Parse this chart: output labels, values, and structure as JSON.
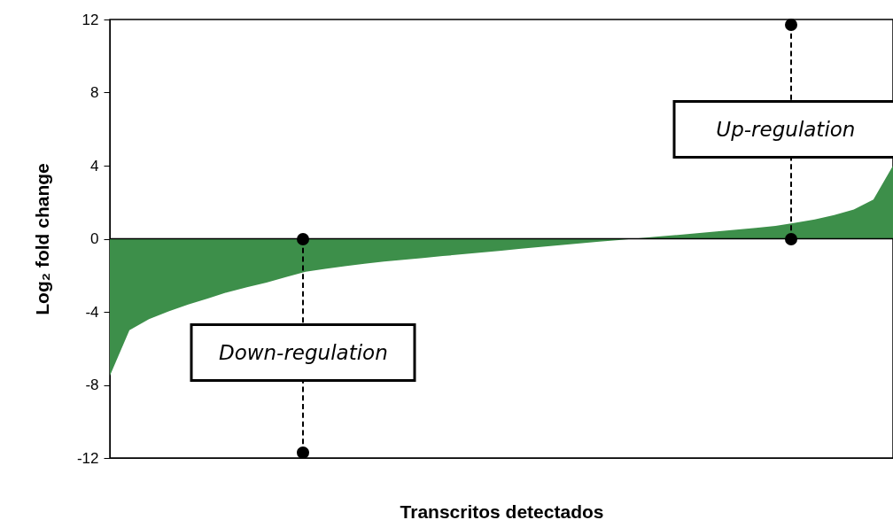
{
  "chart_data": {
    "type": "area",
    "xlabel": "Transcritos detectados",
    "ylabel": "Log₂ fold change",
    "categories": [
      null,
      null,
      null,
      null,
      null,
      null,
      null,
      null,
      null,
      null,
      null,
      null,
      null,
      null,
      null,
      null,
      null,
      null,
      null,
      null,
      null,
      null,
      null,
      null,
      null,
      null,
      null,
      null,
      null,
      null,
      null,
      null,
      null,
      null,
      null,
      null,
      null,
      null,
      null,
      null,
      null
    ],
    "ylim": [
      -12,
      12
    ],
    "yticks": [
      -12,
      -8,
      -4,
      0,
      4,
      8,
      12
    ],
    "tick_labels": "y",
    "grid": false,
    "ref_lines": [
      {
        "axis": "y",
        "value": 0,
        "color": "#000000"
      }
    ],
    "series": [
      {
        "color": "#3d8f4a",
        "values": [
          -7.5,
          -5.0,
          -4.4,
          -3.97,
          -3.6,
          -3.27,
          -2.93,
          -2.65,
          -2.4,
          -2.1,
          -1.8,
          -1.65,
          -1.5,
          -1.37,
          -1.25,
          -1.15,
          -1.05,
          -0.95,
          -0.85,
          -0.75,
          -0.65,
          -0.55,
          -0.45,
          -0.35,
          -0.25,
          -0.16,
          -0.07,
          0.02,
          0.12,
          0.21,
          0.3,
          0.4,
          0.5,
          0.6,
          0.7,
          0.87,
          1.05,
          1.3,
          1.6,
          2.15,
          4.0
        ]
      }
    ],
    "annotations": [
      "Down-regulation",
      "Up-regulation"
    ]
  }
}
